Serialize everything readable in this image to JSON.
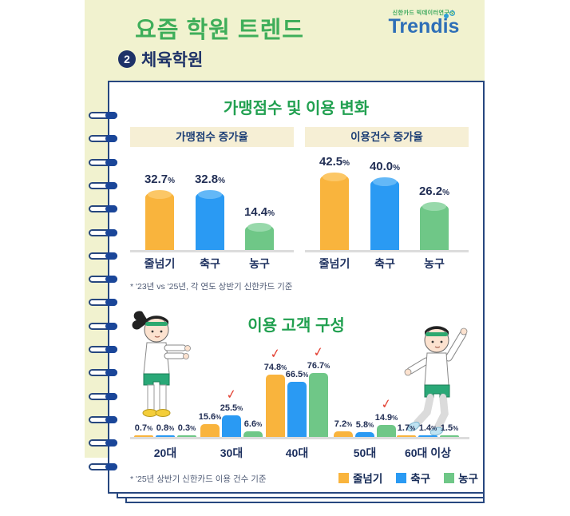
{
  "header": {
    "title": "요즘 학원 트렌드",
    "badge_number": "2",
    "subtitle": "체육학원",
    "logo": {
      "tagline": "신한카드 빅데이터연구소",
      "brand": "Trendis"
    }
  },
  "sections": {
    "usage_change": {
      "heading": "가맹점수 및 이용 변화",
      "footnote": "* '23년 vs '25년, 각 연도 상반기 신한카드 기준"
    },
    "customers": {
      "heading": "이용 고객 구성",
      "footnote": "* '25년 상반기 신한카드 이용 건수 기준"
    }
  },
  "legend": {
    "items": [
      {
        "label": "줄넘기",
        "color": "#f9b43d"
      },
      {
        "label": "축구",
        "color": "#2a9af3"
      },
      {
        "label": "농구",
        "color": "#6fc787"
      }
    ]
  },
  "colors": {
    "background_panel": "#f1f2cf",
    "page_border": "#27477f",
    "title_green": "#3fae5a",
    "heading_green": "#21a050",
    "navy_text": "#1e3268",
    "beige_box": "#f6efd5",
    "series": [
      {
        "name": "줄넘기",
        "color": "#f9b43d",
        "cap": "#fcc766"
      },
      {
        "name": "축구",
        "color": "#2a9af3",
        "cap": "#63b8f7"
      },
      {
        "name": "농구",
        "color": "#6fc787",
        "cap": "#98d9ab"
      }
    ],
    "check_red": "#e34234"
  },
  "chart_data": [
    {
      "type": "bar",
      "title": "가맹점수 증가율",
      "unit": "%",
      "categories": [
        "줄넘기",
        "축구",
        "농구"
      ],
      "values": [
        32.7,
        32.8,
        14.4
      ],
      "ylim": [
        0,
        45
      ],
      "grid": false
    },
    {
      "type": "bar",
      "title": "이용건수 증가율",
      "unit": "%",
      "categories": [
        "줄넘기",
        "축구",
        "농구"
      ],
      "values": [
        42.5,
        40.0,
        26.2
      ],
      "ylim": [
        0,
        45
      ],
      "grid": false
    },
    {
      "type": "bar",
      "title": "이용 고객 구성",
      "unit": "%",
      "categories": [
        "20대",
        "30대",
        "40대",
        "50대",
        "60대 이상"
      ],
      "series": [
        {
          "name": "줄넘기",
          "values": [
            0.7,
            15.6,
            74.8,
            7.2,
            1.7
          ]
        },
        {
          "name": "축구",
          "values": [
            0.8,
            25.5,
            66.5,
            5.8,
            1.4
          ]
        },
        {
          "name": "농구",
          "values": [
            0.3,
            6.6,
            76.7,
            14.9,
            1.5
          ]
        }
      ],
      "checkmarks": [
        {
          "category": "30대",
          "series": "축구"
        },
        {
          "category": "40대",
          "series": "줄넘기"
        },
        {
          "category": "40대",
          "series": "농구"
        },
        {
          "category": "50대",
          "series": "농구"
        }
      ],
      "ylim": [
        0,
        80
      ],
      "grid": false,
      "legend_position": "bottom-right"
    }
  ]
}
